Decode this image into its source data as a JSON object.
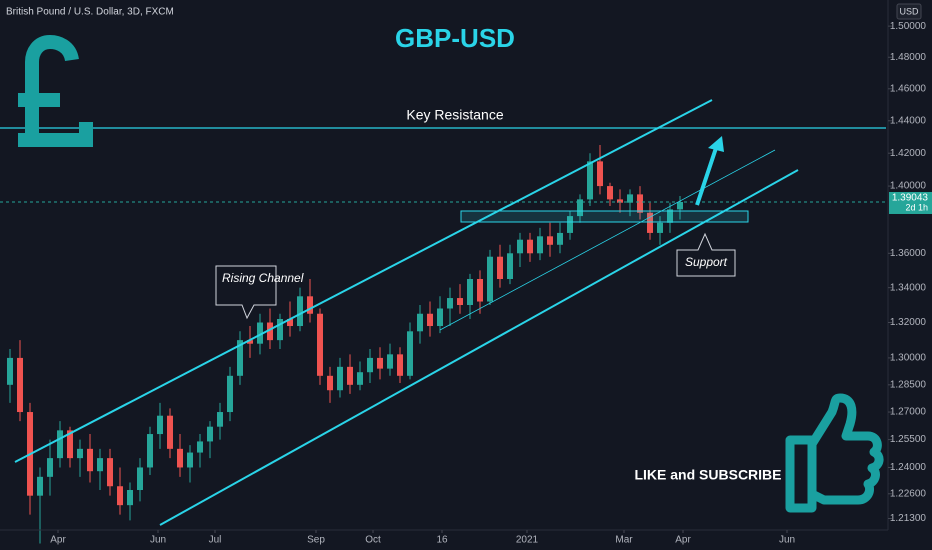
{
  "chart_data": {
    "type": "candlestick",
    "symbol": "British Pound / U.S. Dollar, 3D, FXCM",
    "currency": "USD",
    "title": "GBP-USD",
    "annotations": {
      "resistance": "Key Resistance",
      "channel": "Rising Channel",
      "support": "Support",
      "cta": "LIKE and SUBSCRIBE"
    },
    "last_price": 1.39043,
    "countdown": "2d 1h",
    "colors": {
      "up": "#26a69a",
      "down": "#ef5350"
    },
    "log_scale": true,
    "grid": false,
    "ylim": [
      1.207,
      1.517
    ],
    "yticks": [
      {
        "value": 1.5,
        "label": "1.50000"
      },
      {
        "value": 1.48,
        "label": "1.48000"
      },
      {
        "value": 1.46,
        "label": "1.46000"
      },
      {
        "value": 1.44,
        "label": "1.44000"
      },
      {
        "value": 1.42,
        "label": "1.42000"
      },
      {
        "value": 1.4,
        "label": "1.40000"
      },
      {
        "value": 1.36,
        "label": "1.36000"
      },
      {
        "value": 1.34,
        "label": "1.34000"
      },
      {
        "value": 1.32,
        "label": "1.32000"
      },
      {
        "value": 1.3,
        "label": "1.30000"
      },
      {
        "value": 1.285,
        "label": "1.28500"
      },
      {
        "value": 1.27,
        "label": "1.27000"
      },
      {
        "value": 1.255,
        "label": "1.25500"
      },
      {
        "value": 1.24,
        "label": "1.24000"
      },
      {
        "value": 1.226,
        "label": "1.22600"
      },
      {
        "value": 1.213,
        "label": "1.21300"
      }
    ],
    "xlim": [
      -1,
      87.8
    ],
    "xticks": [
      {
        "value": 4.8,
        "label": "Apr"
      },
      {
        "value": 14.8,
        "label": "Jun"
      },
      {
        "value": 20.5,
        "label": "Jul"
      },
      {
        "value": 30.6,
        "label": "Sep"
      },
      {
        "value": 36.3,
        "label": "Oct"
      },
      {
        "value": 43.2,
        "label": "16"
      },
      {
        "value": 51.7,
        "label": "2021"
      },
      {
        "value": 61.4,
        "label": "Mar"
      },
      {
        "value": 67.3,
        "label": "Apr"
      },
      {
        "value": 77.7,
        "label": "Jun"
      }
    ],
    "ohlc": [
      [
        1.285,
        1.305,
        1.275,
        1.3
      ],
      [
        1.3,
        1.31,
        1.265,
        1.27
      ],
      [
        1.27,
        1.275,
        1.215,
        1.225
      ],
      [
        1.225,
        1.24,
        1.2,
        1.235
      ],
      [
        1.235,
        1.255,
        1.225,
        1.245
      ],
      [
        1.245,
        1.265,
        1.24,
        1.26
      ],
      [
        1.26,
        1.262,
        1.24,
        1.245
      ],
      [
        1.245,
        1.255,
        1.235,
        1.25
      ],
      [
        1.25,
        1.258,
        1.232,
        1.238
      ],
      [
        1.238,
        1.25,
        1.228,
        1.245
      ],
      [
        1.245,
        1.25,
        1.225,
        1.23
      ],
      [
        1.23,
        1.24,
        1.215,
        1.22
      ],
      [
        1.22,
        1.232,
        1.212,
        1.228
      ],
      [
        1.228,
        1.245,
        1.222,
        1.24
      ],
      [
        1.24,
        1.262,
        1.236,
        1.258
      ],
      [
        1.258,
        1.275,
        1.25,
        1.268
      ],
      [
        1.268,
        1.272,
        1.245,
        1.25
      ],
      [
        1.25,
        1.258,
        1.235,
        1.24
      ],
      [
        1.24,
        1.252,
        1.232,
        1.248
      ],
      [
        1.248,
        1.258,
        1.24,
        1.254
      ],
      [
        1.254,
        1.265,
        1.245,
        1.262
      ],
      [
        1.262,
        1.275,
        1.255,
        1.27
      ],
      [
        1.27,
        1.295,
        1.265,
        1.29
      ],
      [
        1.29,
        1.315,
        1.285,
        1.31
      ],
      [
        1.31,
        1.318,
        1.3,
        1.308
      ],
      [
        1.308,
        1.325,
        1.302,
        1.32
      ],
      [
        1.32,
        1.328,
        1.305,
        1.31
      ],
      [
        1.31,
        1.325,
        1.305,
        1.322
      ],
      [
        1.322,
        1.332,
        1.312,
        1.318
      ],
      [
        1.318,
        1.34,
        1.315,
        1.335
      ],
      [
        1.335,
        1.345,
        1.32,
        1.325
      ],
      [
        1.325,
        1.328,
        1.285,
        1.29
      ],
      [
        1.29,
        1.295,
        1.275,
        1.282
      ],
      [
        1.282,
        1.3,
        1.278,
        1.295
      ],
      [
        1.295,
        1.302,
        1.28,
        1.285
      ],
      [
        1.285,
        1.298,
        1.282,
        1.292
      ],
      [
        1.292,
        1.305,
        1.286,
        1.3
      ],
      [
        1.3,
        1.306,
        1.288,
        1.294
      ],
      [
        1.294,
        1.308,
        1.29,
        1.302
      ],
      [
        1.302,
        1.306,
        1.286,
        1.29
      ],
      [
        1.29,
        1.32,
        1.288,
        1.315
      ],
      [
        1.315,
        1.33,
        1.308,
        1.325
      ],
      [
        1.325,
        1.332,
        1.312,
        1.318
      ],
      [
        1.318,
        1.335,
        1.314,
        1.328
      ],
      [
        1.328,
        1.34,
        1.318,
        1.334
      ],
      [
        1.334,
        1.342,
        1.325,
        1.33
      ],
      [
        1.33,
        1.348,
        1.322,
        1.345
      ],
      [
        1.345,
        1.35,
        1.325,
        1.332
      ],
      [
        1.332,
        1.362,
        1.33,
        1.358
      ],
      [
        1.358,
        1.365,
        1.34,
        1.345
      ],
      [
        1.345,
        1.365,
        1.342,
        1.36
      ],
      [
        1.36,
        1.372,
        1.352,
        1.368
      ],
      [
        1.368,
        1.372,
        1.355,
        1.36
      ],
      [
        1.36,
        1.375,
        1.356,
        1.37
      ],
      [
        1.37,
        1.378,
        1.358,
        1.365
      ],
      [
        1.365,
        1.378,
        1.36,
        1.372
      ],
      [
        1.372,
        1.385,
        1.368,
        1.382
      ],
      [
        1.382,
        1.395,
        1.378,
        1.392
      ],
      [
        1.392,
        1.42,
        1.388,
        1.415
      ],
      [
        1.415,
        1.425,
        1.395,
        1.4
      ],
      [
        1.4,
        1.402,
        1.388,
        1.392
      ],
      [
        1.392,
        1.398,
        1.384,
        1.39
      ],
      [
        1.39,
        1.398,
        1.382,
        1.395
      ],
      [
        1.395,
        1.4,
        1.38,
        1.384
      ],
      [
        1.384,
        1.39,
        1.368,
        1.372
      ],
      [
        1.372,
        1.382,
        1.365,
        1.378
      ],
      [
        1.378,
        1.39,
        1.372,
        1.386
      ],
      [
        1.386,
        1.394,
        1.38,
        1.39043
      ]
    ]
  }
}
